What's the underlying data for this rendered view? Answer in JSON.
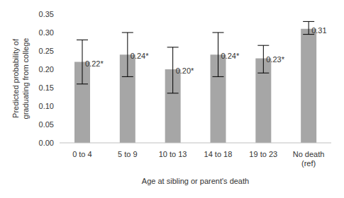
{
  "chart_data": {
    "type": "bar",
    "categories": [
      "0 to 4",
      "5 to 9",
      "10 to 13",
      "14 to 18",
      "19 to 23",
      "No death (ref)"
    ],
    "values": [
      0.22,
      0.24,
      0.2,
      0.24,
      0.23,
      0.31
    ],
    "value_labels": [
      "0.22*",
      "0.24*",
      "0.20*",
      "0.24*",
      "0.23*",
      "0.31"
    ],
    "error_minus": [
      0.06,
      0.06,
      0.065,
      0.06,
      0.04,
      0.015
    ],
    "error_plus": [
      0.06,
      0.06,
      0.06,
      0.06,
      0.035,
      0.02
    ],
    "color": "#a6a6a6",
    "x_label": "Age at sibling or parent's death",
    "y_label": "Predicted probability of graduating from college",
    "ylim": [
      0,
      0.35
    ],
    "yticks": [
      {
        "value": 0,
        "label": "0.00"
      },
      {
        "value": 0.05,
        "label": "0.05"
      },
      {
        "value": 0.1,
        "label": "0.10"
      },
      {
        "value": 0.15,
        "label": "0.15"
      },
      {
        "value": 0.2,
        "label": "0.20"
      },
      {
        "value": 0.25,
        "label": "0.25"
      },
      {
        "value": 0.3,
        "label": "0.30"
      },
      {
        "value": 0.35,
        "label": "0.35"
      }
    ],
    "data_labels": true,
    "grid": false
  }
}
